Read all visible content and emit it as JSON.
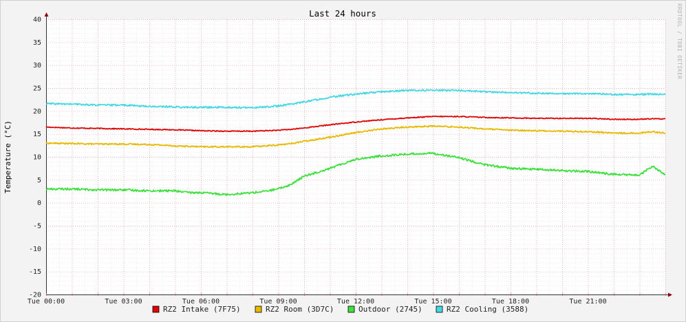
{
  "chart_data": {
    "type": "line",
    "title": "Last 24 hours",
    "ylabel": "Temperature (°C)",
    "watermark": "RRDTOOL / TOBI OETIKER",
    "ylim": [
      -20,
      40
    ],
    "yticks": [
      40,
      35,
      30,
      25,
      20,
      15,
      10,
      5,
      0,
      -5,
      -10,
      -15,
      -20
    ],
    "xlim": [
      "Tue 00:00",
      "Tue 24:00"
    ],
    "xticks": [
      "Tue 00:00",
      "Tue 03:00",
      "Tue 06:00",
      "Tue 09:00",
      "Tue 12:00",
      "Tue 15:00",
      "Tue 18:00",
      "Tue 21:00"
    ],
    "grid": true,
    "legend_position": "bottom",
    "x_hours": [
      0,
      1,
      2,
      3,
      4,
      5,
      5.5,
      6,
      7,
      8,
      8.5,
      9,
      9.5,
      10,
      11,
      12,
      13,
      14,
      15,
      16,
      17,
      18,
      19,
      20,
      21,
      22,
      23,
      23.5,
      24
    ],
    "series": [
      {
        "name": "RZ2 Intake (7F75)",
        "color": "#e00000",
        "values": [
          16.5,
          16.3,
          16.2,
          16.1,
          16.0,
          15.9,
          15.8,
          15.7,
          15.6,
          15.6,
          15.7,
          15.8,
          16.0,
          16.3,
          17.0,
          17.6,
          18.1,
          18.5,
          18.8,
          18.8,
          18.6,
          18.5,
          18.4,
          18.4,
          18.4,
          18.2,
          18.2,
          18.3,
          18.3
        ]
      },
      {
        "name": "RZ2 Room (3D7C)",
        "color": "#e8b800",
        "values": [
          13.0,
          12.9,
          12.8,
          12.8,
          12.7,
          12.4,
          12.3,
          12.2,
          12.2,
          12.2,
          12.4,
          12.6,
          12.9,
          13.4,
          14.3,
          15.3,
          16.1,
          16.5,
          16.7,
          16.5,
          16.1,
          15.8,
          15.7,
          15.6,
          15.5,
          15.2,
          15.2,
          15.5,
          15.2
        ]
      },
      {
        "name": "Outdoor (2745)",
        "color": "#3ee03e",
        "values": [
          3.0,
          3.0,
          2.8,
          2.8,
          2.6,
          2.6,
          2.2,
          2.2,
          1.8,
          2.2,
          2.5,
          3.0,
          4.0,
          5.8,
          7.5,
          9.5,
          10.2,
          10.6,
          10.8,
          9.8,
          8.3,
          7.5,
          7.3,
          7.0,
          6.8,
          6.2,
          6.0,
          8.0,
          6.0
        ]
      },
      {
        "name": "RZ2 Cooling (3588)",
        "color": "#45d8e4",
        "values": [
          21.6,
          21.5,
          21.3,
          21.3,
          21.0,
          20.9,
          20.8,
          20.8,
          20.8,
          20.7,
          20.9,
          21.1,
          21.5,
          22.0,
          23.0,
          23.7,
          24.2,
          24.5,
          24.5,
          24.5,
          24.2,
          24.0,
          23.9,
          23.8,
          23.8,
          23.6,
          23.6,
          23.7,
          23.6
        ]
      }
    ]
  }
}
